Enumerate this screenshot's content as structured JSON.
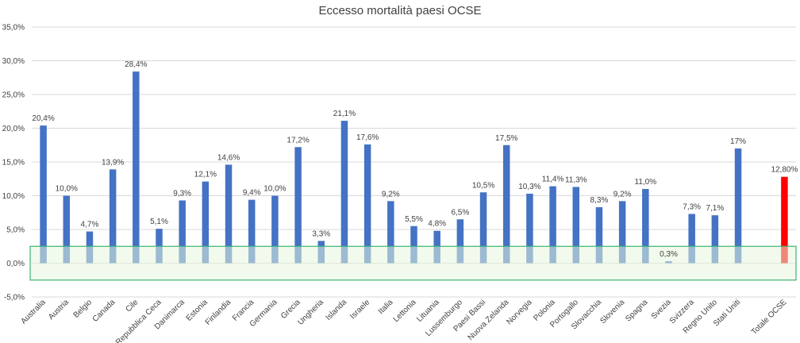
{
  "chart_data": {
    "type": "bar",
    "title": "Eccesso mortalità paesi OCSE",
    "xlabel": "",
    "ylabel": "",
    "ylim": [
      -5,
      35
    ],
    "ytick_values": [
      -5,
      0,
      5,
      10,
      15,
      20,
      25,
      30,
      35
    ],
    "ytick_labels": [
      "-5,0%",
      "0,0%",
      "5,0%",
      "10,0%",
      "15,0%",
      "20,0%",
      "25,0%",
      "30,0%",
      "35,0%"
    ],
    "grid": true,
    "categories": [
      "Australia",
      "Austria",
      "Belgio",
      "Canada",
      "Cile",
      "Repubblica Ceca",
      "Danimarca",
      "Estonia",
      "Finlandia",
      "Francia",
      "Germania",
      "Grecia",
      "Ungheria",
      "Islanda",
      "Israele",
      "Italia",
      "Lettonia",
      "Lituania",
      "Lussemburgo",
      "Paesi Bassi",
      "Nuova Zelanda",
      "Norvegia",
      "Polonia",
      "Portogallo",
      "Slovacchia",
      "Slovenia",
      "Spagna",
      "Svezia",
      "Svizzera",
      "Regno Unito",
      "Stati Uniti",
      "",
      "Totale OCSE"
    ],
    "values": [
      20.4,
      10.0,
      4.7,
      13.9,
      28.4,
      5.1,
      9.3,
      12.1,
      14.6,
      9.4,
      10.0,
      17.2,
      3.3,
      21.1,
      17.6,
      9.2,
      5.5,
      4.8,
      6.5,
      10.5,
      17.5,
      10.3,
      11.4,
      11.3,
      8.3,
      9.2,
      11.0,
      0.3,
      7.3,
      7.1,
      17.0,
      null,
      12.8
    ],
    "data_labels": [
      "20,4%",
      "10,0%",
      "4,7%",
      "13,9%",
      "28,4%",
      "5,1%",
      "9,3%",
      "12,1%",
      "14,6%",
      "9,4%",
      "10,0%",
      "17,2%",
      "3,3%",
      "21,1%",
      "17,6%",
      "9,2%",
      "5,5%",
      "4,8%",
      "6,5%",
      "10,5%",
      "17,5%",
      "10,3%",
      "11,4%",
      "11,3%",
      "8,3%",
      "9,2%",
      "11,0%",
      "0,3%",
      "7,3%",
      "7,1%",
      "17%",
      "",
      "12,80%"
    ],
    "highlight_index": 32,
    "band": {
      "from": -2.5,
      "to": 2.5
    },
    "colors": {
      "bar": "#4472c4",
      "highlight": "#ff0000",
      "band_fill": "#e6f5dc",
      "band_stroke": "#3cb371",
      "grid": "#d9d9d9",
      "text": "#404040"
    }
  }
}
